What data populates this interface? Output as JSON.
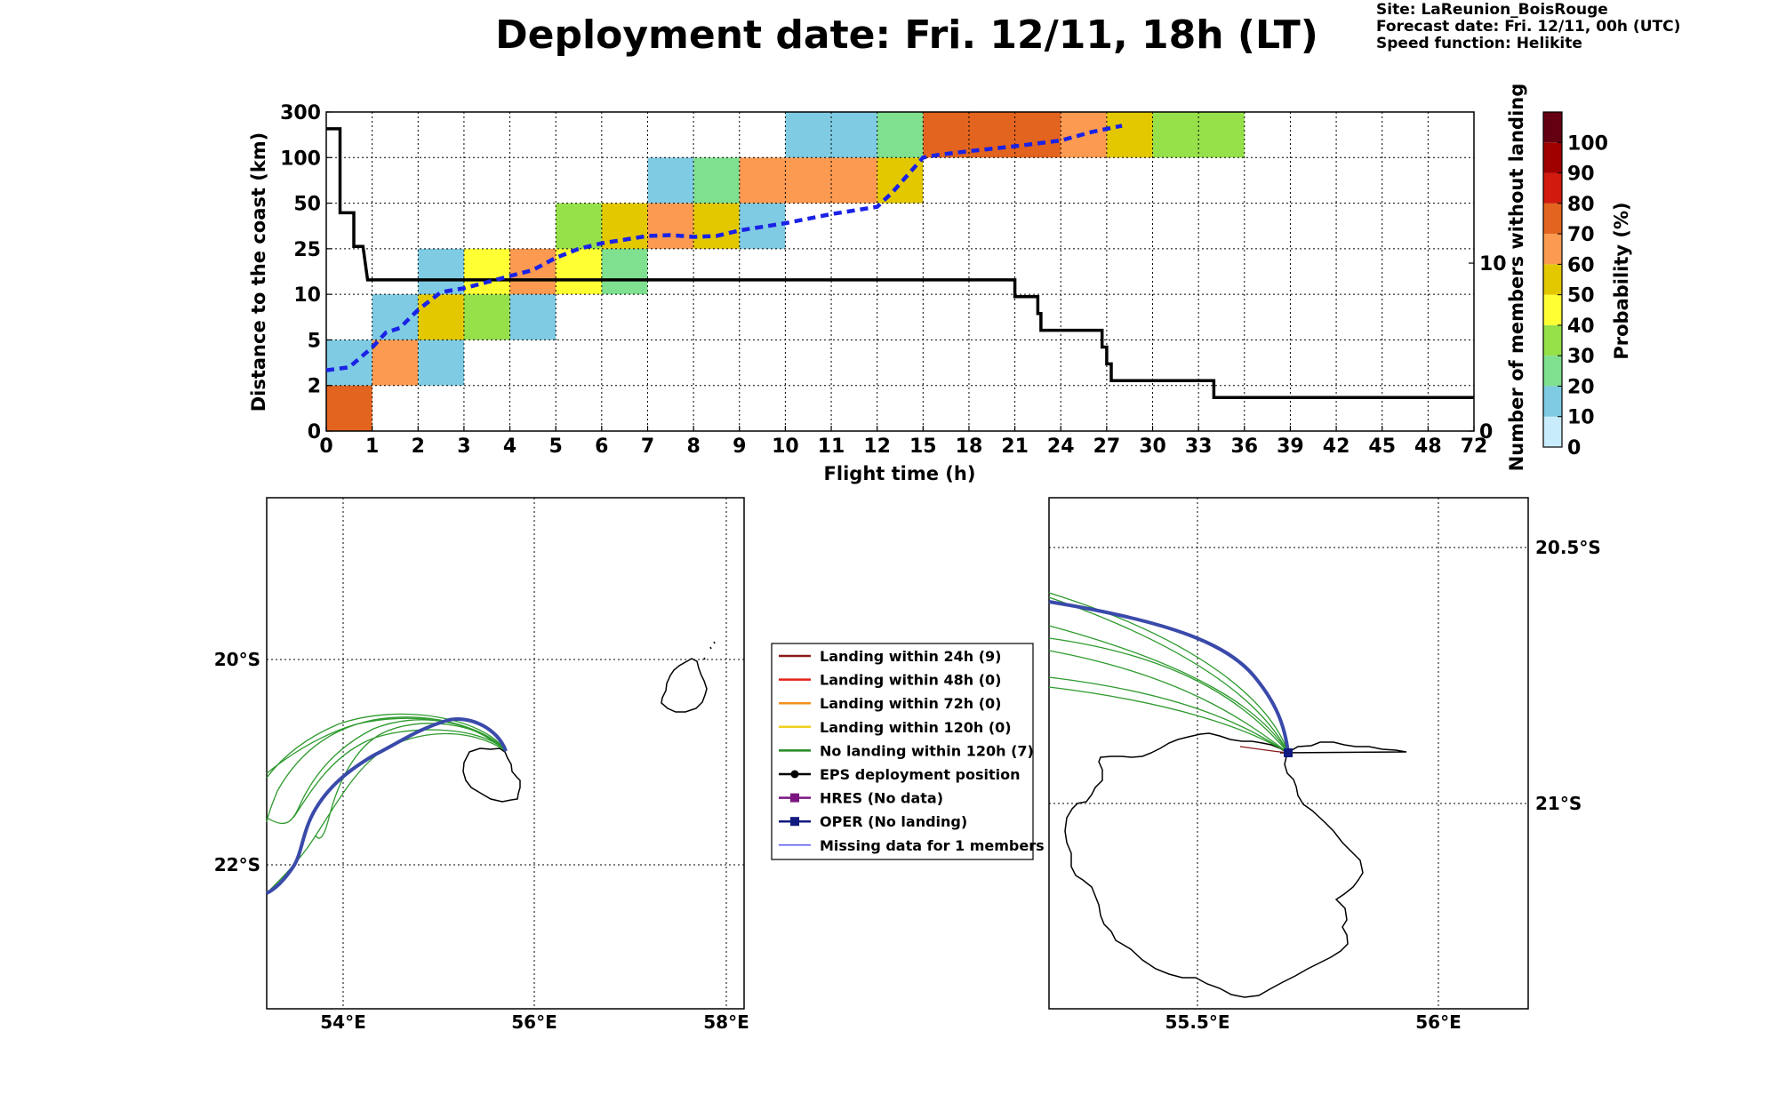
{
  "header": {
    "title": "Deployment date: Fri. 12/11, 18h (LT)",
    "site": "Site: LaReunion_BoisRouge",
    "forecast_date": "Forecast date: Fri. 12/11, 00h (UTC)",
    "speed_function": "Speed function: Helikite"
  },
  "chart_data": [
    {
      "type": "heatmap",
      "xlabel": "Flight time (h)",
      "ylabel": "Distance to the coast (km)",
      "y2label": "Number of members without landing",
      "x_ticks": [
        "0",
        "1",
        "2",
        "3",
        "4",
        "5",
        "6",
        "7",
        "8",
        "9",
        "10",
        "11",
        "12",
        "15",
        "18",
        "21",
        "24",
        "27",
        "30",
        "33",
        "36",
        "39",
        "42",
        "45",
        "48",
        "72"
      ],
      "y_ticks": [
        "0",
        "2",
        "5",
        "10",
        "25",
        "50",
        "100",
        "300"
      ],
      "y2_ticks": [
        "0",
        "10"
      ],
      "y2_range": [
        0,
        19
      ],
      "colorbar": {
        "label": "Probability (%)",
        "levels": [
          0,
          10,
          20,
          30,
          40,
          50,
          60,
          70,
          80,
          90,
          100
        ],
        "tick_labels": [
          "0",
          "10",
          "20",
          "30",
          "40",
          "50",
          "60",
          "70",
          "80",
          "90",
          "100"
        ],
        "colors": [
          "#c8ecfb",
          "#7ecbe3",
          "#7fe08f",
          "#96e04a",
          "#ffff33",
          "#e3c800",
          "#fb9a50",
          "#e3641e",
          "#d21a0e",
          "#a00000",
          "#650012"
        ]
      },
      "cells": [
        {
          "x": [
            0,
            1
          ],
          "y": [
            0,
            2
          ],
          "color": "#e3641e"
        },
        {
          "x": [
            0,
            1
          ],
          "y": [
            2,
            5
          ],
          "color": "#7ecbe3"
        },
        {
          "x": [
            1,
            2
          ],
          "y": [
            2,
            5
          ],
          "color": "#fb9a50"
        },
        {
          "x": [
            1,
            2
          ],
          "y": [
            5,
            10
          ],
          "color": "#7ecbe3"
        },
        {
          "x": [
            2,
            3
          ],
          "y": [
            2,
            5
          ],
          "color": "#7ecbe3"
        },
        {
          "x": [
            2,
            3
          ],
          "y": [
            5,
            10
          ],
          "color": "#e3c800"
        },
        {
          "x": [
            2,
            3
          ],
          "y": [
            10,
            25
          ],
          "color": "#7ecbe3"
        },
        {
          "x": [
            3,
            4
          ],
          "y": [
            5,
            10
          ],
          "color": "#96e04a"
        },
        {
          "x": [
            3,
            4
          ],
          "y": [
            10,
            25
          ],
          "color": "#ffff33"
        },
        {
          "x": [
            4,
            5
          ],
          "y": [
            5,
            10
          ],
          "color": "#7ecbe3"
        },
        {
          "x": [
            4,
            5
          ],
          "y": [
            10,
            25
          ],
          "color": "#fb9a50"
        },
        {
          "x": [
            5,
            6
          ],
          "y": [
            10,
            25
          ],
          "color": "#ffff33"
        },
        {
          "x": [
            5,
            6
          ],
          "y": [
            25,
            50
          ],
          "color": "#96e04a"
        },
        {
          "x": [
            6,
            7
          ],
          "y": [
            10,
            25
          ],
          "color": "#7fe08f"
        },
        {
          "x": [
            6,
            7
          ],
          "y": [
            25,
            50
          ],
          "color": "#e3c800"
        },
        {
          "x": [
            7,
            8
          ],
          "y": [
            25,
            50
          ],
          "color": "#fb9a50"
        },
        {
          "x": [
            7,
            8
          ],
          "y": [
            50,
            100
          ],
          "color": "#7ecbe3"
        },
        {
          "x": [
            8,
            9
          ],
          "y": [
            25,
            50
          ],
          "color": "#e3c800"
        },
        {
          "x": [
            8,
            9
          ],
          "y": [
            50,
            100
          ],
          "color": "#7fe08f"
        },
        {
          "x": [
            9,
            10
          ],
          "y": [
            25,
            50
          ],
          "color": "#7ecbe3"
        },
        {
          "x": [
            9,
            12
          ],
          "y": [
            50,
            100
          ],
          "color": "#fb9a50"
        },
        {
          "x": [
            10,
            12
          ],
          "y": [
            100,
            300
          ],
          "color": "#7ecbe3"
        },
        {
          "x": [
            12,
            15
          ],
          "y": [
            50,
            100
          ],
          "color": "#e3c800"
        },
        {
          "x": [
            12,
            15
          ],
          "y": [
            100,
            300
          ],
          "color": "#7fe08f"
        },
        {
          "x": [
            15,
            24
          ],
          "y": [
            100,
            300
          ],
          "color": "#e3641e"
        },
        {
          "x": [
            24,
            27
          ],
          "y": [
            100,
            300
          ],
          "color": "#fb9a50"
        },
        {
          "x": [
            27,
            30
          ],
          "y": [
            100,
            300
          ],
          "color": "#e3c800"
        },
        {
          "x": [
            30,
            36
          ],
          "y": [
            100,
            300
          ],
          "color": "#96e04a"
        }
      ],
      "series": [
        {
          "kind": "step",
          "axis": "right",
          "color": "#000000",
          "x": [
            0,
            0.3,
            0.3,
            0.6,
            0.6,
            0.8,
            0.9,
            1,
            21,
            21,
            22.5,
            22.5,
            22.7,
            22.7,
            26.7,
            26.7,
            27,
            27,
            27.3,
            27.3,
            34,
            34,
            72
          ],
          "y": [
            18,
            18,
            13,
            13,
            11,
            11,
            9,
            9,
            9,
            8,
            8,
            7,
            7,
            6,
            6,
            5,
            5,
            4,
            4,
            3,
            3,
            2,
            2
          ]
        },
        {
          "kind": "dashed",
          "axis": "left",
          "color": "#1a22e6",
          "x": [
            0,
            0.5,
            1,
            1.3,
            1.6,
            2,
            2.5,
            3,
            3.5,
            4,
            4.5,
            5,
            5.5,
            6,
            6.5,
            7,
            7.5,
            8,
            8.5,
            9,
            9.5,
            10,
            11,
            12,
            13,
            15,
            16,
            18,
            21,
            24,
            26,
            28
          ],
          "y": [
            3,
            3.2,
            4.5,
            5.8,
            6.3,
            8.3,
            10.7,
            12,
            14,
            16,
            18,
            22,
            25,
            28,
            30,
            32,
            32.5,
            31.5,
            32,
            35,
            37,
            39,
            44,
            48,
            62,
            100,
            112,
            128,
            150,
            175,
            212,
            240
          ]
        }
      ]
    }
  ],
  "maps": {
    "left": {
      "lon_ticks": [
        "54°E",
        "56°E",
        "58°E"
      ],
      "lat_ticks": [
        "20°S",
        "22°S"
      ]
    },
    "right": {
      "lon_ticks": [
        "55.5°E",
        "56°E"
      ],
      "lat_ticks": [
        "20.5°S",
        "21°S"
      ]
    }
  },
  "legend": [
    {
      "label": "Landing within 24h (9)",
      "color": "#8b1a1a",
      "marker": "line"
    },
    {
      "label": "Landing within 48h (0)",
      "color": "#e8201a",
      "marker": "line"
    },
    {
      "label": "Landing within 72h (0)",
      "color": "#f5901e",
      "marker": "line"
    },
    {
      "label": "Landing within 120h (0)",
      "color": "#f0d020",
      "marker": "line"
    },
    {
      "label": "No landing within 120h (7)",
      "color": "#228b22",
      "marker": "line"
    },
    {
      "label": "EPS deployment position",
      "color": "#000000",
      "marker": "circle"
    },
    {
      "label": "HRES (No data)",
      "color": "#7b1680",
      "marker": "square"
    },
    {
      "label": "OPER (No landing)",
      "color": "#101a80",
      "marker": "square"
    },
    {
      "label": "Missing data for 1 members",
      "color": "#5a5af0",
      "marker": "thin"
    }
  ]
}
